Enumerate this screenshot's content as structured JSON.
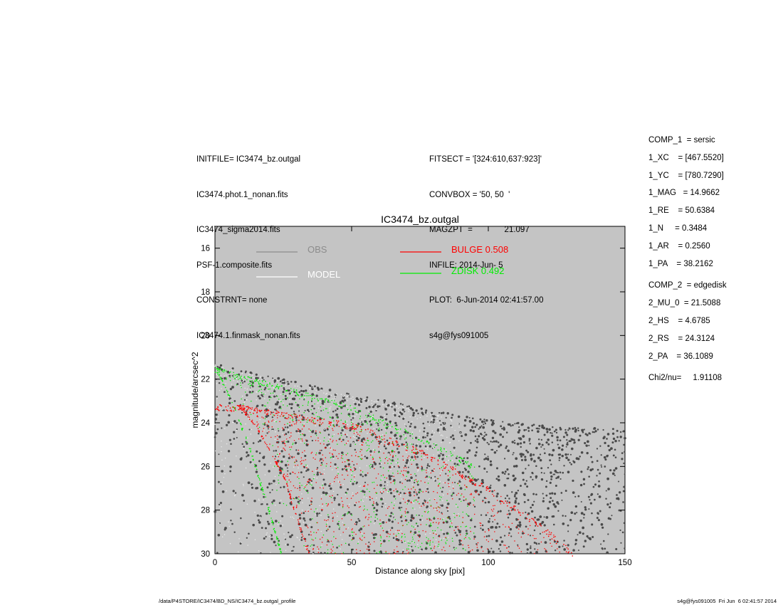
{
  "header_left": [
    "INITFILE= IC3474_bz.outgal",
    "IC3474.phot.1_nonan.fits",
    "IC3474_sigma2014.fits",
    "PSF-1.composite.fits",
    "CONSTRNT= none",
    "IC3474.1.finmask_nonan.fits"
  ],
  "header_mid": [
    "FITSECT = '[324:610,637:923]'",
    "CONVBOX = '50, 50  '",
    "MAGZPT  =              21.097",
    "INFILE: 2014-Jun- 5",
    "PLOT:  6-Jun-2014 02:41:57.00",
    "s4g@fys091005"
  ],
  "params": [
    {
      "text": "COMP_1  = sersic",
      "gap_before": false
    },
    {
      "text": "1_XC    = [467.5520]",
      "gap_before": false
    },
    {
      "text": "1_YC    = [780.7290]",
      "gap_before": false
    },
    {
      "text": "1_MAG   = 14.9662",
      "gap_before": false
    },
    {
      "text": "1_RE    = 50.6384",
      "gap_before": false
    },
    {
      "text": "1_N     = 0.3484",
      "gap_before": false
    },
    {
      "text": "1_AR    = 0.2560",
      "gap_before": false
    },
    {
      "text": "1_PA    = 38.2162",
      "gap_before": false
    },
    {
      "text": "COMP_2  = edgedisk",
      "gap_before": true
    },
    {
      "text": "2_MU_0  = 21.5088",
      "gap_before": false
    },
    {
      "text": "2_HS    = 4.6785",
      "gap_before": false
    },
    {
      "text": "2_RS    = 24.3124",
      "gap_before": false
    },
    {
      "text": "2_PA    = 36.1089",
      "gap_before": false
    },
    {
      "text": "Chi2/nu=     1.91108",
      "gap_before": true
    }
  ],
  "footer": {
    "left": "/data/P4STORE/IC3474/BD_NS/IC3474_bz.outgal_profile",
    "right": "s4g@fys091005  Fri Jun  6 02:41:57 2014"
  },
  "colors": {
    "plot_bg": "#c4c4c4",
    "obs": "#8c8c8c",
    "obs_points": "#4a4a4a",
    "model": "#ffffff",
    "bulge": "#ff0000",
    "disk": "#00ee00"
  },
  "chart_data": {
    "type": "scatter",
    "title": "IC3474_bz.outgal",
    "xlabel": "Distance along sky [pix]",
    "ylabel": "magnitude/arcsec^2",
    "xlim": [
      0,
      150
    ],
    "ylim": [
      30,
      15
    ],
    "y_inverted": true,
    "xticks": [
      0,
      50,
      100,
      150
    ],
    "yticks": [
      16,
      18,
      20,
      22,
      24,
      26,
      28,
      30
    ],
    "grid": false,
    "legend": [
      {
        "label": "OBS",
        "color": "#8c8c8c"
      },
      {
        "label": "MODEL",
        "color": "#ffffff"
      },
      {
        "label": "BULGE  0.508",
        "color": "#ff0000"
      },
      {
        "label": "ZDISK  0.492",
        "color": "#00ee00"
      }
    ],
    "series": [
      {
        "name": "OBS",
        "upper_envelope": [
          [
            0,
            21.3
          ],
          [
            10,
            21.6
          ],
          [
            25,
            22.0
          ],
          [
            50,
            22.7
          ],
          [
            75,
            23.3
          ],
          [
            95,
            23.8
          ],
          [
            110,
            24.0
          ],
          [
            125,
            24.2
          ],
          [
            150,
            24.3
          ]
        ],
        "lower_limit": 30
      },
      {
        "name": "MODEL",
        "upper_envelope": [
          [
            0,
            21.35
          ],
          [
            10,
            21.7
          ],
          [
            25,
            22.1
          ],
          [
            50,
            22.8
          ],
          [
            75,
            23.4
          ],
          [
            90,
            24.0
          ]
        ],
        "lower_limit": 30
      },
      {
        "name": "BULGE  0.508",
        "upper_envelope": [
          [
            0,
            23.15
          ],
          [
            10,
            23.2
          ],
          [
            25,
            23.5
          ],
          [
            50,
            24.0
          ],
          [
            75,
            25.2
          ],
          [
            100,
            26.9
          ],
          [
            120,
            28.7
          ],
          [
            132,
            30
          ]
        ],
        "lower_edge": [
          [
            8,
            23.2
          ],
          [
            15,
            24.2
          ],
          [
            25,
            26.5
          ],
          [
            34,
            30
          ]
        ],
        "lower_limit": 30
      },
      {
        "name": "ZDISK  0.492",
        "upper_envelope": [
          [
            0,
            21.45
          ],
          [
            10,
            21.8
          ],
          [
            25,
            22.3
          ],
          [
            50,
            23.2
          ],
          [
            75,
            24.6
          ],
          [
            95,
            25.9
          ]
        ],
        "lower_edge": [
          [
            0,
            21.5
          ],
          [
            5,
            22.8
          ],
          [
            12,
            25.0
          ],
          [
            19,
            27.8
          ],
          [
            24,
            30
          ]
        ],
        "lower_limit": 30
      }
    ]
  }
}
